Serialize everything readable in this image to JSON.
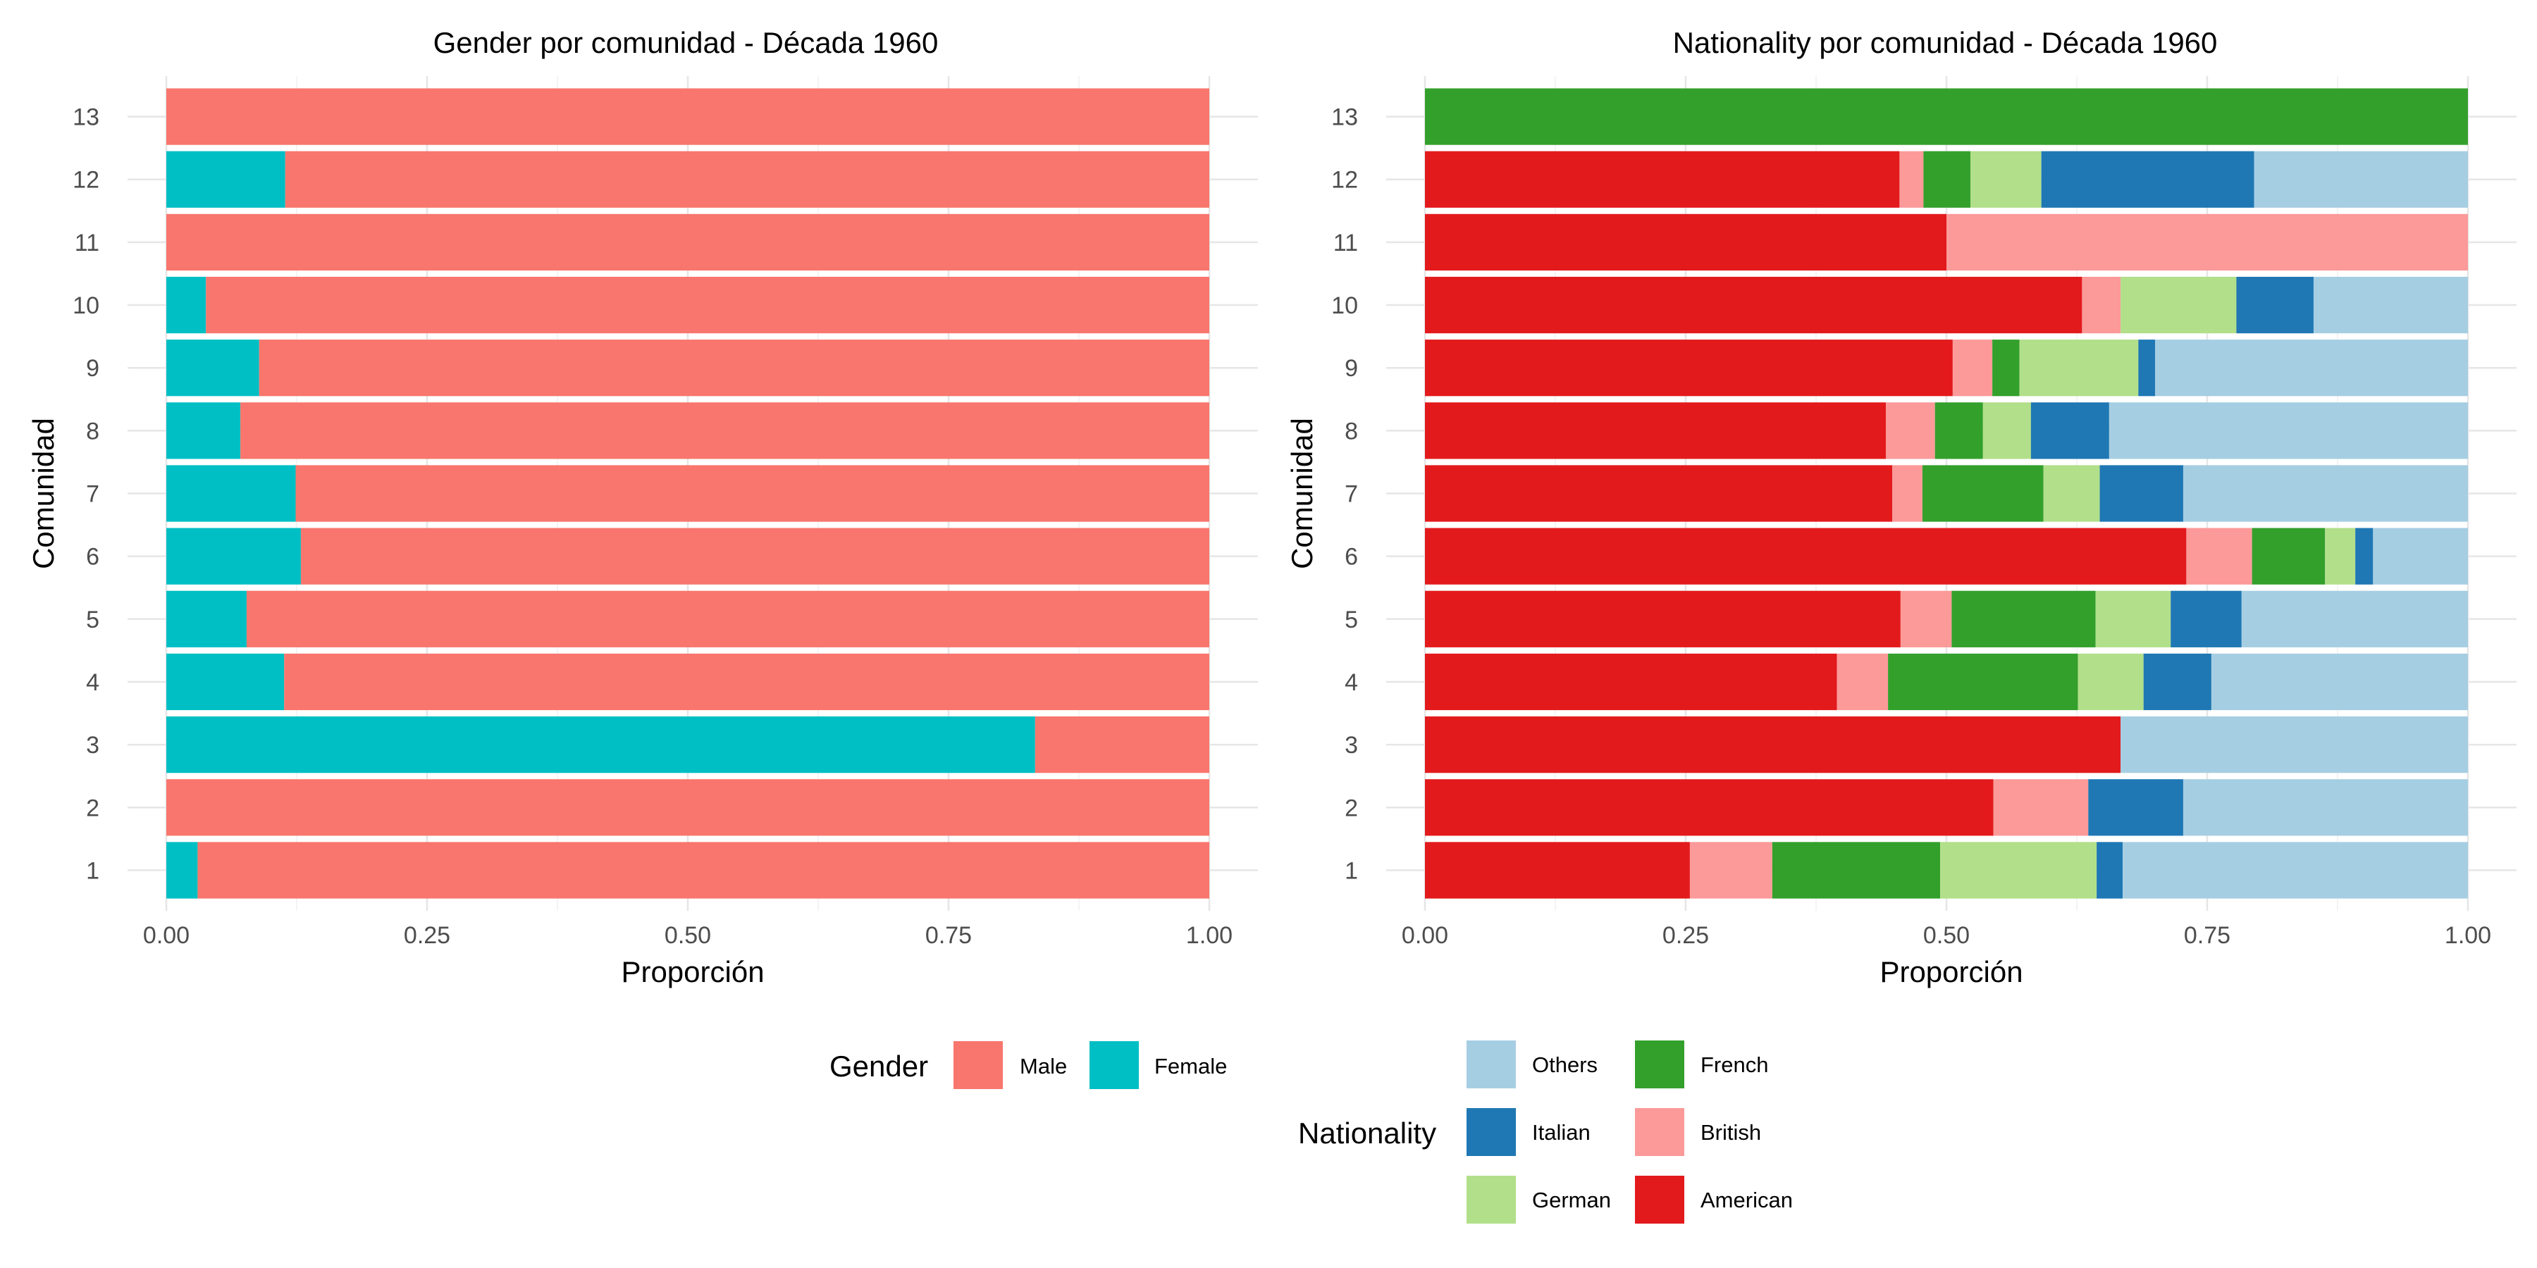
{
  "chart_data": [
    {
      "type": "bar",
      "orientation": "horizontal",
      "stacked": true,
      "title": "Gender por comunidad - Década 1960",
      "xlabel": "Proporción",
      "ylabel": "Comunidad",
      "categories": [
        "1",
        "2",
        "3",
        "4",
        "5",
        "6",
        "7",
        "8",
        "9",
        "10",
        "11",
        "12",
        "13"
      ],
      "xlim": [
        0,
        1
      ],
      "xticks": [
        "0.00",
        "0.25",
        "0.50",
        "0.75",
        "1.00"
      ],
      "grid": true,
      "legend": {
        "title": "Gender",
        "position": "bottom",
        "items": [
          "Male",
          "Female"
        ]
      },
      "series": [
        {
          "name": "Female",
          "color": "#00BFC4",
          "values": [
            0.03,
            0.0,
            0.833,
            0.113,
            0.077,
            0.129,
            0.124,
            0.071,
            0.089,
            0.038,
            0.0,
            0.114,
            0.0
          ]
        },
        {
          "name": "Male",
          "color": "#F8766D",
          "values": [
            0.97,
            1.0,
            0.167,
            0.887,
            0.923,
            0.871,
            0.876,
            0.929,
            0.911,
            0.962,
            1.0,
            0.886,
            1.0
          ]
        }
      ]
    },
    {
      "type": "bar",
      "orientation": "horizontal",
      "stacked": true,
      "title": "Nationality por comunidad - Década 1960",
      "xlabel": "Proporción",
      "ylabel": "Comunidad",
      "categories": [
        "1",
        "2",
        "3",
        "4",
        "5",
        "6",
        "7",
        "8",
        "9",
        "10",
        "11",
        "12",
        "13"
      ],
      "xlim": [
        0,
        1
      ],
      "xticks": [
        "0.00",
        "0.25",
        "0.50",
        "0.75",
        "1.00"
      ],
      "grid": true,
      "legend": {
        "title": "Nationality",
        "position": "bottom",
        "items": [
          "Others",
          "French",
          "Italian",
          "British",
          "German",
          "American"
        ]
      },
      "series": [
        {
          "name": "American",
          "color": "#E31A1C",
          "values": [
            0.254,
            0.545,
            0.667,
            0.395,
            0.456,
            0.73,
            0.448,
            0.442,
            0.506,
            0.63,
            0.5,
            0.455,
            0.0
          ]
        },
        {
          "name": "British",
          "color": "#FB9A99",
          "values": [
            0.079,
            0.091,
            0.0,
            0.049,
            0.049,
            0.063,
            0.029,
            0.047,
            0.038,
            0.037,
            0.5,
            0.023,
            0.0
          ]
        },
        {
          "name": "French",
          "color": "#33A02C",
          "values": [
            0.161,
            0.0,
            0.0,
            0.182,
            0.138,
            0.07,
            0.116,
            0.046,
            0.026,
            0.0,
            0.0,
            0.045,
            1.0
          ]
        },
        {
          "name": "German",
          "color": "#B2DF8A",
          "values": [
            0.15,
            0.0,
            0.0,
            0.063,
            0.072,
            0.029,
            0.054,
            0.046,
            0.114,
            0.111,
            0.0,
            0.068,
            0.0
          ]
        },
        {
          "name": "Italian",
          "color": "#1F78B4",
          "values": [
            0.025,
            0.091,
            0.0,
            0.065,
            0.068,
            0.017,
            0.08,
            0.075,
            0.016,
            0.074,
            0.0,
            0.204,
            0.0
          ]
        },
        {
          "name": "Others",
          "color": "#A6CEE3",
          "values": [
            0.331,
            0.273,
            0.333,
            0.246,
            0.217,
            0.091,
            0.273,
            0.344,
            0.3,
            0.148,
            0.0,
            0.205,
            0.0
          ]
        }
      ]
    }
  ]
}
